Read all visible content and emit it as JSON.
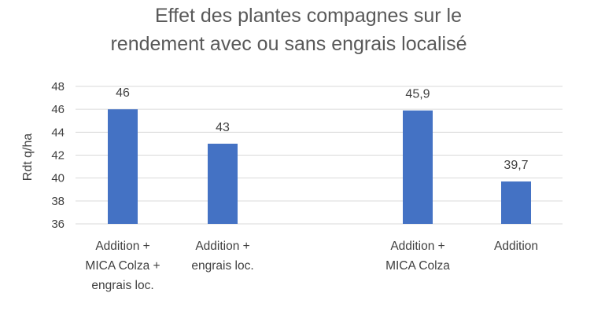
{
  "chart_data": {
    "type": "bar",
    "title_lines": [
      "Effet des plantes compagnes sur le",
      "rendement avec ou sans engrais localisé"
    ],
    "ylabel": "Rdt q/ha",
    "xlabel": "",
    "ylim": [
      36,
      48
    ],
    "y_ticks": [
      "36",
      "38",
      "40",
      "42",
      "44",
      "46",
      "48"
    ],
    "grid": true,
    "categories": [
      [
        "Addition +",
        "MICA Colza +",
        "engrais loc."
      ],
      [
        "Addition +",
        "engrais loc."
      ],
      [
        "Addition +",
        "MICA Colza"
      ],
      [
        "Addition"
      ]
    ],
    "values": [
      46,
      43,
      45.9,
      39.7
    ],
    "data_labels": [
      "46",
      "43",
      "45,9",
      "39,7"
    ],
    "bar_color": "#4472c4"
  }
}
